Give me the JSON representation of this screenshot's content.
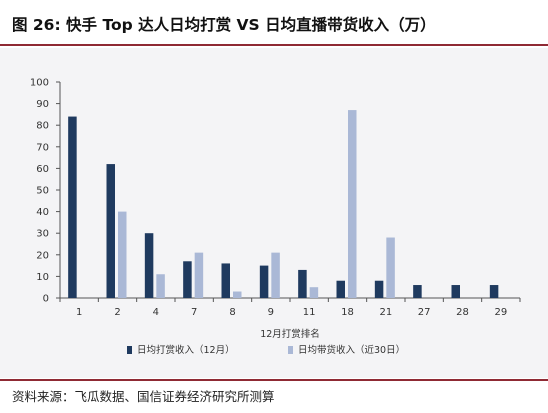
{
  "title": "图 26: 快手 Top 达人日均打赏 VS 日均直播带货收入（万）",
  "source": "资料来源：飞瓜数据、国信证券经济研究所测算",
  "colors": {
    "accent_rule": "#8f2a34",
    "series_dark": "#1f3a5f",
    "series_light": "#aab8d6",
    "plot_bg": "#f4f4f6"
  },
  "chart_data": {
    "type": "bar",
    "categories": [
      "1",
      "2",
      "4",
      "7",
      "8",
      "9",
      "11",
      "18",
      "21",
      "27",
      "28",
      "29"
    ],
    "xlabel": "12月打赏排名",
    "ylabel": "",
    "ylim": [
      0,
      100
    ],
    "yticks": [
      0,
      10,
      20,
      30,
      40,
      50,
      60,
      70,
      80,
      90,
      100
    ],
    "grid": false,
    "legend": "bottom",
    "series": [
      {
        "name": "日均打赏收入（12月）",
        "values": [
          84,
          62,
          30,
          17,
          16,
          15,
          13,
          8,
          8,
          6,
          6,
          6
        ]
      },
      {
        "name": "日均带货收入（近30日）",
        "values": [
          0,
          40,
          11,
          21,
          3,
          21,
          5,
          87,
          28,
          0,
          0,
          0
        ]
      }
    ]
  }
}
